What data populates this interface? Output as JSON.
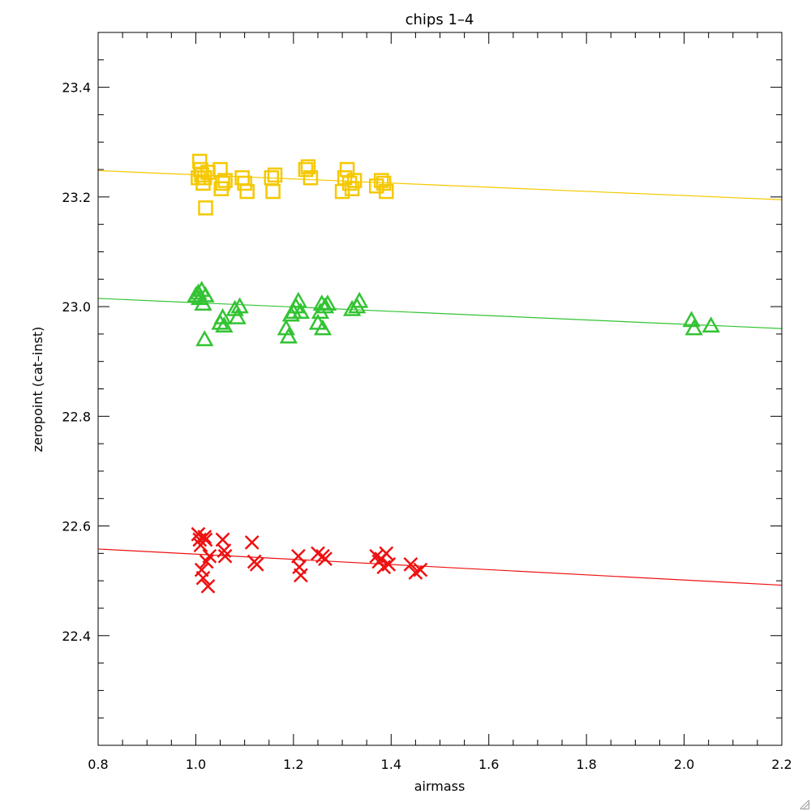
{
  "chart_data": {
    "type": "scatter",
    "title": "chips 1–4",
    "xlabel": "airmass",
    "ylabel": "zeropoint (cat–inst)",
    "xlim": [
      0.8,
      2.2
    ],
    "ylim": [
      22.2,
      23.5
    ],
    "xticks": [
      "0.8",
      "1.0",
      "1.2",
      "1.4",
      "1.6",
      "1.8",
      "2.0",
      "2.2"
    ],
    "yticks": [
      "22.4",
      "22.6",
      "22.8",
      "23.0",
      "23.2",
      "23.4"
    ],
    "grid": false,
    "series": [
      {
        "marker": "square",
        "color": "#f5c800",
        "fit": [
          [
            0.8,
            23.248
          ],
          [
            2.2,
            23.195
          ]
        ],
        "points": [
          [
            1.005,
            23.235
          ],
          [
            1.008,
            23.265
          ],
          [
            1.01,
            23.25
          ],
          [
            1.012,
            23.24
          ],
          [
            1.015,
            23.225
          ],
          [
            1.018,
            23.235
          ],
          [
            1.02,
            23.18
          ],
          [
            1.025,
            23.245
          ],
          [
            1.05,
            23.25
          ],
          [
            1.052,
            23.215
          ],
          [
            1.055,
            23.225
          ],
          [
            1.06,
            23.23
          ],
          [
            1.095,
            23.235
          ],
          [
            1.1,
            23.225
          ],
          [
            1.105,
            23.21
          ],
          [
            1.155,
            23.235
          ],
          [
            1.158,
            23.21
          ],
          [
            1.162,
            23.24
          ],
          [
            1.225,
            23.25
          ],
          [
            1.23,
            23.255
          ],
          [
            1.235,
            23.235
          ],
          [
            1.3,
            23.21
          ],
          [
            1.305,
            23.235
          ],
          [
            1.31,
            23.25
          ],
          [
            1.315,
            23.225
          ],
          [
            1.32,
            23.215
          ],
          [
            1.325,
            23.23
          ],
          [
            1.37,
            23.22
          ],
          [
            1.38,
            23.23
          ],
          [
            1.385,
            23.225
          ],
          [
            1.39,
            23.21
          ]
        ]
      },
      {
        "marker": "triangle",
        "color": "#33c333",
        "fit": [
          [
            0.8,
            23.015
          ],
          [
            2.2,
            22.96
          ]
        ],
        "points": [
          [
            1.0,
            23.02
          ],
          [
            1.005,
            23.025
          ],
          [
            1.008,
            23.015
          ],
          [
            1.012,
            23.03
          ],
          [
            1.015,
            23.005
          ],
          [
            1.018,
            22.94
          ],
          [
            1.02,
            23.02
          ],
          [
            1.05,
            22.97
          ],
          [
            1.055,
            22.98
          ],
          [
            1.058,
            22.965
          ],
          [
            1.08,
            22.995
          ],
          [
            1.085,
            22.98
          ],
          [
            1.09,
            23.0
          ],
          [
            1.185,
            22.96
          ],
          [
            1.19,
            22.945
          ],
          [
            1.195,
            22.985
          ],
          [
            1.2,
            22.99
          ],
          [
            1.205,
            23.0
          ],
          [
            1.21,
            23.01
          ],
          [
            1.215,
            22.99
          ],
          [
            1.25,
            22.97
          ],
          [
            1.255,
            22.99
          ],
          [
            1.258,
            23.005
          ],
          [
            1.26,
            22.96
          ],
          [
            1.265,
            23.0
          ],
          [
            1.27,
            23.005
          ],
          [
            1.32,
            22.995
          ],
          [
            1.33,
            23.0
          ],
          [
            1.335,
            23.01
          ],
          [
            2.015,
            22.975
          ],
          [
            2.02,
            22.96
          ],
          [
            2.055,
            22.965
          ]
        ]
      },
      {
        "marker": "cross",
        "color": "#ee1111",
        "fit": [
          [
            0.8,
            22.558
          ],
          [
            2.2,
            22.492
          ]
        ],
        "points": [
          [
            1.005,
            22.585
          ],
          [
            1.008,
            22.575
          ],
          [
            1.01,
            22.565
          ],
          [
            1.012,
            22.52
          ],
          [
            1.015,
            22.505
          ],
          [
            1.018,
            22.58
          ],
          [
            1.02,
            22.575
          ],
          [
            1.022,
            22.535
          ],
          [
            1.025,
            22.49
          ],
          [
            1.028,
            22.545
          ],
          [
            1.055,
            22.575
          ],
          [
            1.058,
            22.555
          ],
          [
            1.06,
            22.545
          ],
          [
            1.115,
            22.57
          ],
          [
            1.12,
            22.535
          ],
          [
            1.125,
            22.53
          ],
          [
            1.21,
            22.545
          ],
          [
            1.212,
            22.525
          ],
          [
            1.215,
            22.51
          ],
          [
            1.25,
            22.55
          ],
          [
            1.26,
            22.545
          ],
          [
            1.265,
            22.54
          ],
          [
            1.37,
            22.545
          ],
          [
            1.375,
            22.535
          ],
          [
            1.38,
            22.54
          ],
          [
            1.385,
            22.525
          ],
          [
            1.39,
            22.55
          ],
          [
            1.395,
            22.53
          ],
          [
            1.44,
            22.53
          ],
          [
            1.45,
            22.515
          ],
          [
            1.46,
            22.52
          ]
        ]
      }
    ]
  }
}
